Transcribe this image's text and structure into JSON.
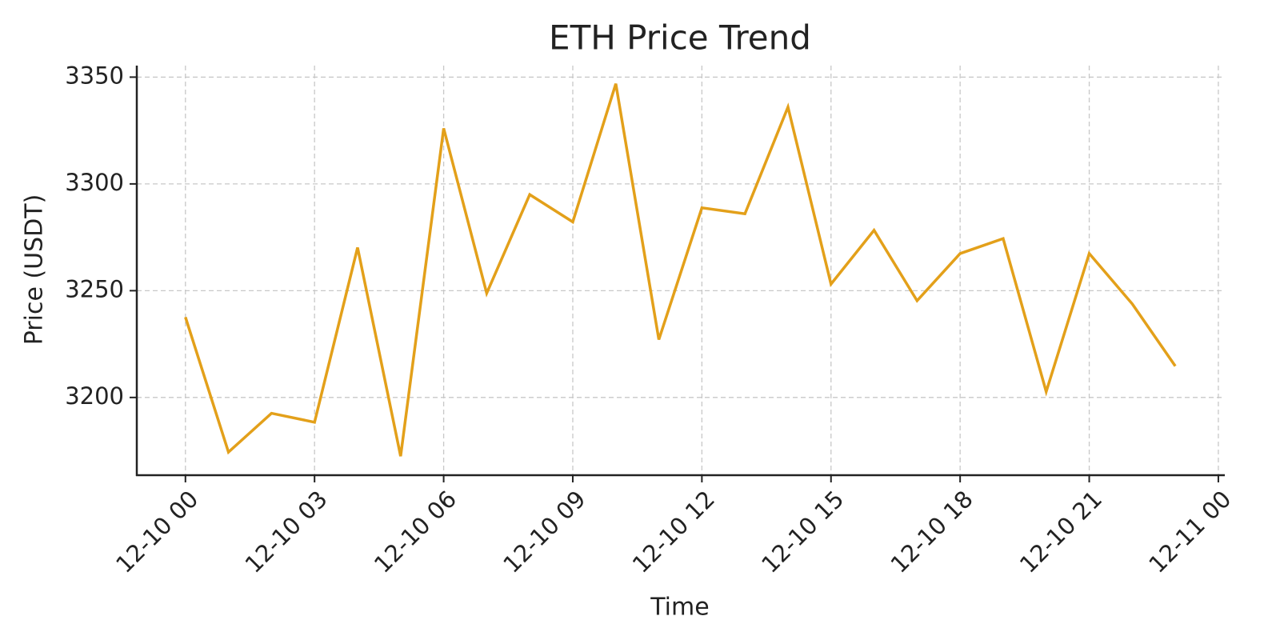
{
  "chart_data": {
    "type": "line",
    "title": "ETH Price Trend",
    "x_label": "Time",
    "y_label": "Price (USDT)",
    "x": [
      0,
      1,
      2,
      3,
      4,
      5,
      6,
      7,
      8,
      9,
      10,
      11,
      12,
      13,
      14,
      15,
      16,
      17,
      18,
      19,
      20,
      21,
      22,
      23
    ],
    "values": [
      3237.6,
      3174.4,
      3192.6,
      3188.4,
      3270.2,
      3172.5,
      3326.0,
      3248.8,
      3295.0,
      3282.2,
      3346.9,
      3227.1,
      3288.8,
      3286.0,
      3336.0,
      3253.1,
      3278.3,
      3245.3,
      3267.4,
      3274.4,
      3202.7,
      3267.4,
      3243.8,
      3214.7
    ],
    "color": "#e3a01a",
    "xlim": [
      -1.13,
      24.15
    ],
    "xticks": [
      {
        "value": 0,
        "label": "12-10 00"
      },
      {
        "value": 3,
        "label": "12-10 03"
      },
      {
        "value": 6,
        "label": "12-10 06"
      },
      {
        "value": 9,
        "label": "12-10 09"
      },
      {
        "value": 12,
        "label": "12-10 12"
      },
      {
        "value": 15,
        "label": "12-10 15"
      },
      {
        "value": 18,
        "label": "12-10 18"
      },
      {
        "value": 21,
        "label": "12-10 21"
      },
      {
        "value": 24,
        "label": "12-11 00"
      }
    ],
    "ylim": [
      3163.6,
      3355.4
    ],
    "yticks": [
      3200,
      3250,
      3300,
      3350
    ],
    "grid": true
  }
}
